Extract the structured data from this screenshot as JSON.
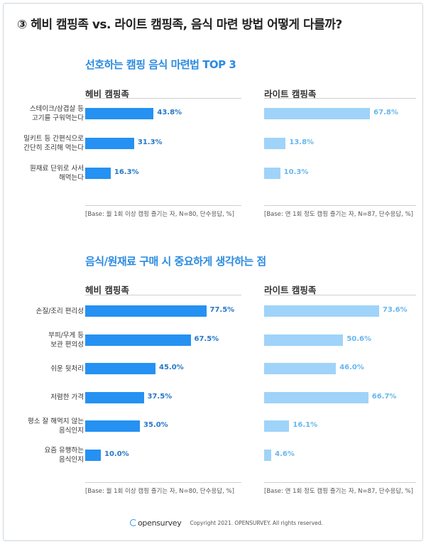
{
  "page": {
    "title": "③ 헤비 캠핑족 vs. 라이트 캠핑족, 음식 마련 방법 어떻게 다를까?",
    "logo": "opensurvey",
    "copyright": "Copyright 2021. OPENSURVEY. All rights reserved."
  },
  "colors": {
    "heavy": "#2591f2",
    "light": "#9fd3f9",
    "accent": "#2b8be0"
  },
  "chart_data": [
    {
      "type": "bar",
      "title": "선호하는 캠핑 음식 마련법 TOP 3",
      "categories": [
        "스테이크/삼겹살 등\n고기를 구워먹는다",
        "밀키트 등 간편식으로\n간단히 조리해 먹는다",
        "원재료 단위로 사서\n해먹는다"
      ],
      "series": [
        {
          "name": "헤비 캠핑족",
          "values": [
            43.8,
            31.3,
            16.3
          ],
          "note": "[Base: 월 1회 이상 캠핑 즐기는 자, N=80, 단수응답, %]"
        },
        {
          "name": "라이트 캠핑족",
          "values": [
            67.8,
            13.8,
            10.3
          ],
          "note": "[Base: 연 1회 정도 캠핑 즐기는 자, N=87, 단수응답, %]"
        }
      ]
    },
    {
      "type": "bar",
      "title": "음식/원재료 구매 시 중요하게 생각하는 점",
      "categories": [
        "손질/조리 편리성",
        "부피/무게 등\n보관 편의성",
        "쉬운 뒷처리",
        "저렴한 가격",
        "평소 잘 해먹지 않는\n음식인지",
        "요즘 유행하는\n음식인지"
      ],
      "series": [
        {
          "name": "헤비 캠핑족",
          "values": [
            77.5,
            67.5,
            45.0,
            37.5,
            35.0,
            10.0
          ],
          "note": "[Base: 월 1회 이상 캠핑 즐기는 자, N=80, 단수응답, %]"
        },
        {
          "name": "라이트 캠핑족",
          "values": [
            73.6,
            50.6,
            46.0,
            66.7,
            16.1,
            4.6
          ],
          "note": "[Base: 연 1회 정도 캠핑 즐기는 자, N=87, 단수응답, %]"
        }
      ]
    }
  ]
}
